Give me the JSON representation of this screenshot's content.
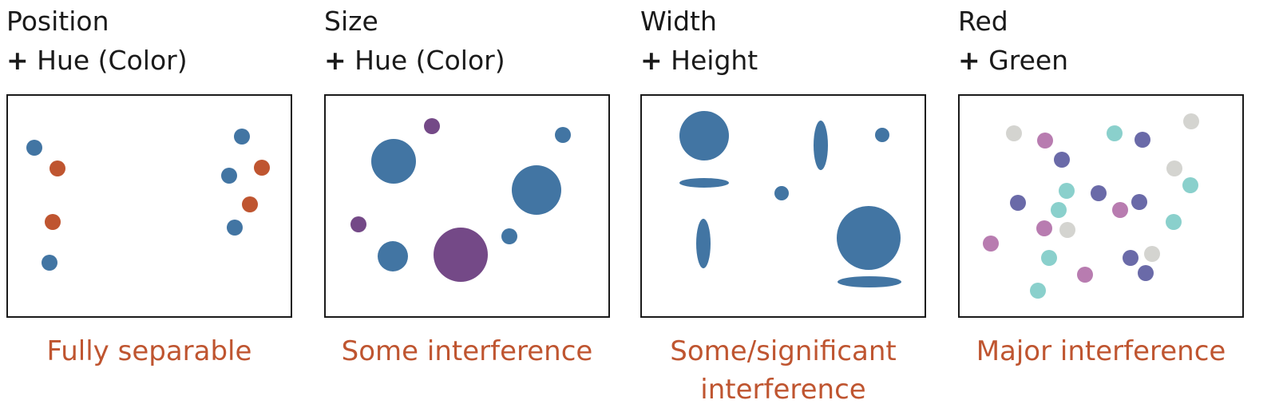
{
  "panels": [
    {
      "title_line1": "Position",
      "title_plus": "+",
      "title_line2": "Hue (Color)",
      "caption": "Fully separable",
      "shapes": [
        {
          "shape": "circle",
          "color": "blue"
        },
        {
          "shape": "circle",
          "color": "orange"
        },
        {
          "shape": "circle",
          "color": "orange"
        },
        {
          "shape": "circle",
          "color": "blue"
        },
        {
          "shape": "circle",
          "color": "blue"
        },
        {
          "shape": "circle",
          "color": "blue"
        },
        {
          "shape": "circle",
          "color": "orange"
        },
        {
          "shape": "circle",
          "color": "orange"
        },
        {
          "shape": "circle",
          "color": "blue"
        }
      ]
    },
    {
      "title_line1": "Size",
      "title_plus": "+",
      "title_line2": "Hue (Color)",
      "caption": "Some interference",
      "shapes": [
        {
          "shape": "circle",
          "color": "purple"
        },
        {
          "shape": "circle",
          "color": "blue"
        },
        {
          "shape": "circle",
          "color": "blue"
        },
        {
          "shape": "circle",
          "color": "blue"
        },
        {
          "shape": "circle",
          "color": "purple"
        },
        {
          "shape": "circle",
          "color": "blue"
        },
        {
          "shape": "circle",
          "color": "purple"
        },
        {
          "shape": "circle",
          "color": "blue"
        }
      ]
    },
    {
      "title_line1": "Width",
      "title_plus": "+",
      "title_line2": "Height",
      "caption": "Some/significant interference",
      "shapes": [
        {
          "shape": "ellipse",
          "color": "blue"
        },
        {
          "shape": "ellipse",
          "color": "blue"
        },
        {
          "shape": "ellipse",
          "color": "blue"
        },
        {
          "shape": "ellipse",
          "color": "blue"
        },
        {
          "shape": "ellipse",
          "color": "blue"
        },
        {
          "shape": "ellipse",
          "color": "blue"
        },
        {
          "shape": "ellipse",
          "color": "blue"
        },
        {
          "shape": "ellipse",
          "color": "blue"
        }
      ]
    },
    {
      "title_line1": "Red",
      "title_plus": "+",
      "title_line2": "Green",
      "caption": "Major interference",
      "shapes": [
        {
          "shape": "circle",
          "color": "gray"
        },
        {
          "shape": "circle",
          "color": "pink"
        },
        {
          "shape": "circle",
          "color": "indigo"
        },
        {
          "shape": "circle",
          "color": "teal"
        },
        {
          "shape": "circle",
          "color": "indigo"
        },
        {
          "shape": "circle",
          "color": "gray"
        },
        {
          "shape": "circle",
          "color": "gray"
        },
        {
          "shape": "circle",
          "color": "teal"
        },
        {
          "shape": "circle",
          "color": "indigo"
        },
        {
          "shape": "circle",
          "color": "teal"
        },
        {
          "shape": "circle",
          "color": "indigo"
        },
        {
          "shape": "circle",
          "color": "indigo"
        },
        {
          "shape": "circle",
          "color": "teal"
        },
        {
          "shape": "circle",
          "color": "pink"
        },
        {
          "shape": "circle",
          "color": "teal"
        },
        {
          "shape": "circle",
          "color": "pink"
        },
        {
          "shape": "circle",
          "color": "gray"
        },
        {
          "shape": "circle",
          "color": "pink"
        },
        {
          "shape": "circle",
          "color": "teal"
        },
        {
          "shape": "circle",
          "color": "gray"
        },
        {
          "shape": "circle",
          "color": "indigo"
        },
        {
          "shape": "circle",
          "color": "pink"
        },
        {
          "shape": "circle",
          "color": "indigo"
        },
        {
          "shape": "circle",
          "color": "teal"
        }
      ]
    }
  ],
  "colors": {
    "blue": "#4275a3",
    "orange": "#bf5530",
    "purple": "#744987",
    "gray": "#d4d4d0",
    "pink": "#b87cb0",
    "indigo": "#6a6aa8",
    "teal": "#8ad0cc",
    "caption": "#bf5530",
    "title": "#1a1a1a"
  }
}
